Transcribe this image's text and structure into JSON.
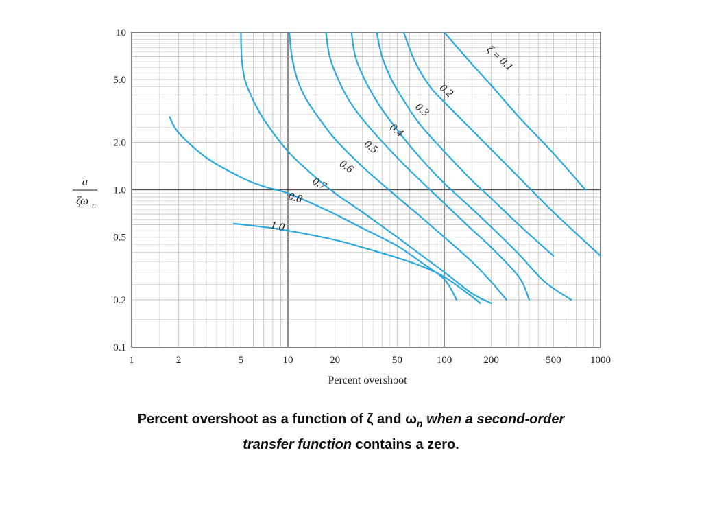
{
  "chart_data": {
    "type": "line",
    "xlabel": "Percent overshoot",
    "ylabel_num": "a",
    "ylabel_den": "ζω",
    "ylabel_sub": "n",
    "x_scale": "log",
    "y_scale": "log",
    "xlim": [
      1,
      1000
    ],
    "ylim": [
      0.1,
      10
    ],
    "grid": true,
    "x_ticks": [
      "1",
      "2",
      "5",
      "10",
      "20",
      "50",
      "100",
      "200",
      "500",
      "1000"
    ],
    "y_ticks": [
      "0.1",
      "0.2",
      "0.5",
      "1.0",
      "2.0",
      "5.0",
      "10"
    ],
    "series": [
      {
        "name": "ζ = 0.1",
        "points": [
          [
            100,
            10
          ],
          [
            150,
            6.3
          ],
          [
            200,
            4.6
          ],
          [
            300,
            2.9
          ],
          [
            500,
            1.7
          ],
          [
            800,
            1.0
          ]
        ]
      },
      {
        "name": "0.2",
        "points": [
          [
            55,
            10
          ],
          [
            65,
            6.5
          ],
          [
            80,
            4.6
          ],
          [
            100,
            3.6
          ],
          [
            150,
            2.4
          ],
          [
            200,
            1.8
          ],
          [
            300,
            1.2
          ],
          [
            500,
            0.72
          ],
          [
            1000,
            0.38
          ]
        ]
      },
      {
        "name": "0.3",
        "points": [
          [
            37,
            10
          ],
          [
            40,
            7
          ],
          [
            46,
            5
          ],
          [
            55,
            3.7
          ],
          [
            70,
            2.6
          ],
          [
            100,
            1.75
          ],
          [
            150,
            1.15
          ],
          [
            200,
            0.88
          ],
          [
            300,
            0.6
          ],
          [
            500,
            0.38
          ]
        ]
      },
      {
        "name": "0.4",
        "points": [
          [
            25.5,
            10
          ],
          [
            27,
            7
          ],
          [
            31,
            5
          ],
          [
            38,
            3.5
          ],
          [
            50,
            2.4
          ],
          [
            70,
            1.6
          ],
          [
            100,
            1.1
          ],
          [
            150,
            0.76
          ],
          [
            200,
            0.58
          ],
          [
            300,
            0.39
          ],
          [
            440,
            0.26
          ],
          [
            650,
            0.2
          ]
        ]
      },
      {
        "name": "0.5",
        "points": [
          [
            17.5,
            10
          ],
          [
            18.5,
            7
          ],
          [
            21,
            5
          ],
          [
            25,
            3.6
          ],
          [
            32,
            2.6
          ],
          [
            50,
            1.6
          ],
          [
            70,
            1.15
          ],
          [
            100,
            0.82
          ],
          [
            150,
            0.56
          ],
          [
            200,
            0.43
          ],
          [
            300,
            0.28
          ],
          [
            350,
            0.2
          ]
        ]
      },
      {
        "name": "0.6",
        "points": [
          [
            10.2,
            10
          ],
          [
            10.6,
            7
          ],
          [
            11.5,
            5
          ],
          [
            13,
            3.8
          ],
          [
            16,
            2.8
          ],
          [
            20,
            2.1
          ],
          [
            30,
            1.4
          ],
          [
            50,
            0.9
          ],
          [
            70,
            0.68
          ],
          [
            100,
            0.5
          ],
          [
            150,
            0.35
          ],
          [
            200,
            0.26
          ],
          [
            250,
            0.2
          ]
        ]
      },
      {
        "name": "0.7",
        "points": [
          [
            5,
            10
          ],
          [
            5.05,
            7
          ],
          [
            5.3,
            5
          ],
          [
            6,
            3.7
          ],
          [
            7,
            2.8
          ],
          [
            10,
            1.75
          ],
          [
            15,
            1.2
          ],
          [
            20,
            0.95
          ],
          [
            30,
            0.72
          ],
          [
            50,
            0.5
          ],
          [
            70,
            0.39
          ],
          [
            100,
            0.3
          ],
          [
            150,
            0.22
          ],
          [
            200,
            0.19
          ]
        ]
      },
      {
        "name": "0.8",
        "points": [
          [
            1.75,
            2.9
          ],
          [
            2,
            2.3
          ],
          [
            3,
            1.6
          ],
          [
            5,
            1.2
          ],
          [
            7,
            1.05
          ],
          [
            10,
            0.95
          ],
          [
            15,
            0.8
          ],
          [
            20,
            0.7
          ],
          [
            30,
            0.57
          ],
          [
            50,
            0.44
          ],
          [
            70,
            0.35
          ],
          [
            100,
            0.27
          ],
          [
            120,
            0.2
          ]
        ]
      },
      {
        "name": "1.0",
        "points": [
          [
            4.5,
            0.61
          ],
          [
            7,
            0.58
          ],
          [
            10,
            0.55
          ],
          [
            20,
            0.48
          ],
          [
            30,
            0.43
          ],
          [
            50,
            0.37
          ],
          [
            70,
            0.33
          ],
          [
            100,
            0.28
          ],
          [
            150,
            0.21
          ],
          [
            170,
            0.19
          ]
        ]
      }
    ],
    "curve_labels": [
      {
        "text": "ζ = 0.1",
        "x": 220,
        "y": 6.6,
        "angle": 42
      },
      {
        "text": "0.2",
        "x": 100,
        "y": 4.1,
        "angle": 40
      },
      {
        "text": "0.3",
        "x": 70,
        "y": 3.1,
        "angle": 40
      },
      {
        "text": "0.4",
        "x": 48,
        "y": 2.3,
        "angle": 40
      },
      {
        "text": "0.5",
        "x": 33,
        "y": 1.8,
        "angle": 38
      },
      {
        "text": "0.6",
        "x": 23,
        "y": 1.35,
        "angle": 35
      },
      {
        "text": "0.7",
        "x": 15.5,
        "y": 1.05,
        "angle": 30
      },
      {
        "text": "0.8",
        "x": 11,
        "y": 0.85,
        "angle": 15
      },
      {
        "text": "1.0",
        "x": 8.5,
        "y": 0.56,
        "angle": 12
      }
    ]
  },
  "caption": {
    "part1": "Percent overshoot as a function of ζ and ω",
    "sub": "n",
    "part2": " when a second-order",
    "part3": "transfer function",
    "part4": " contains a zero."
  },
  "colors": {
    "curve": "#29a9e0",
    "grid": "#bdbdbd",
    "major": "#555555"
  }
}
